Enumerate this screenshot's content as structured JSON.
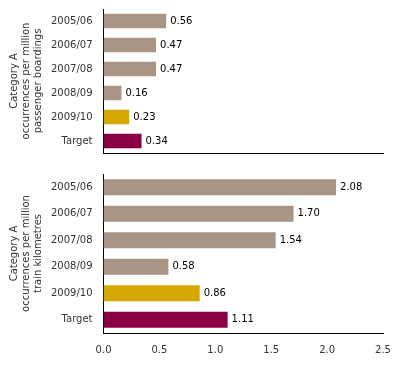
{
  "chart_data": [
    {
      "type": "bar",
      "orientation": "horizontal",
      "ylabel": [
        "Category A",
        "occurrences per million",
        "passenger boardings"
      ],
      "categories": [
        "2005/06",
        "2006/07",
        "2007/08",
        "2008/09",
        "2009/10",
        "Target"
      ],
      "values": [
        0.56,
        0.47,
        0.47,
        0.16,
        0.23,
        0.34
      ],
      "value_labels": [
        "0.56",
        "0.47",
        "0.47",
        "0.16",
        "0.23",
        "0.34"
      ],
      "colors": [
        "#a89585",
        "#a89585",
        "#a89585",
        "#a89585",
        "#d4a800",
        "#8b0045"
      ],
      "data_labels": true,
      "xlim": [
        0,
        2.5
      ],
      "xticks": [
        {
          "value": 0.0,
          "label": "0.0"
        },
        {
          "value": 0.5,
          "label": "0.5"
        },
        {
          "value": 1.0,
          "label": "1.0"
        },
        {
          "value": 1.5,
          "label": "1.5"
        },
        {
          "value": 2.0,
          "label": "2.0"
        },
        {
          "value": 2.5,
          "label": "2.5"
        }
      ],
      "grid": false,
      "tick_labels": "y"
    },
    {
      "type": "bar",
      "orientation": "horizontal",
      "ylabel": [
        "Category A",
        "occurrences per million",
        "train kilometres"
      ],
      "categories": [
        "2005/06",
        "2006/07",
        "2007/08",
        "2008/09",
        "2009/10",
        "Target"
      ],
      "values": [
        2.08,
        1.7,
        1.54,
        0.58,
        0.86,
        1.11
      ],
      "value_labels": [
        "2.08",
        "1.70",
        "1.54",
        "0.58",
        "0.86",
        "1.11"
      ],
      "colors": [
        "#a89585",
        "#a89585",
        "#a89585",
        "#a89585",
        "#d4a800",
        "#8b0045"
      ],
      "data_labels": true,
      "xlim": [
        0,
        2.5
      ],
      "xticks": [
        {
          "value": 0.0,
          "label": "0.0"
        },
        {
          "value": 0.5,
          "label": "0.5"
        },
        {
          "value": 1.0,
          "label": "1.0"
        },
        {
          "value": 1.5,
          "label": "1.5"
        },
        {
          "value": 2.0,
          "label": "2.0"
        },
        {
          "value": 2.5,
          "label": "2.5"
        }
      ],
      "grid": false
    }
  ]
}
